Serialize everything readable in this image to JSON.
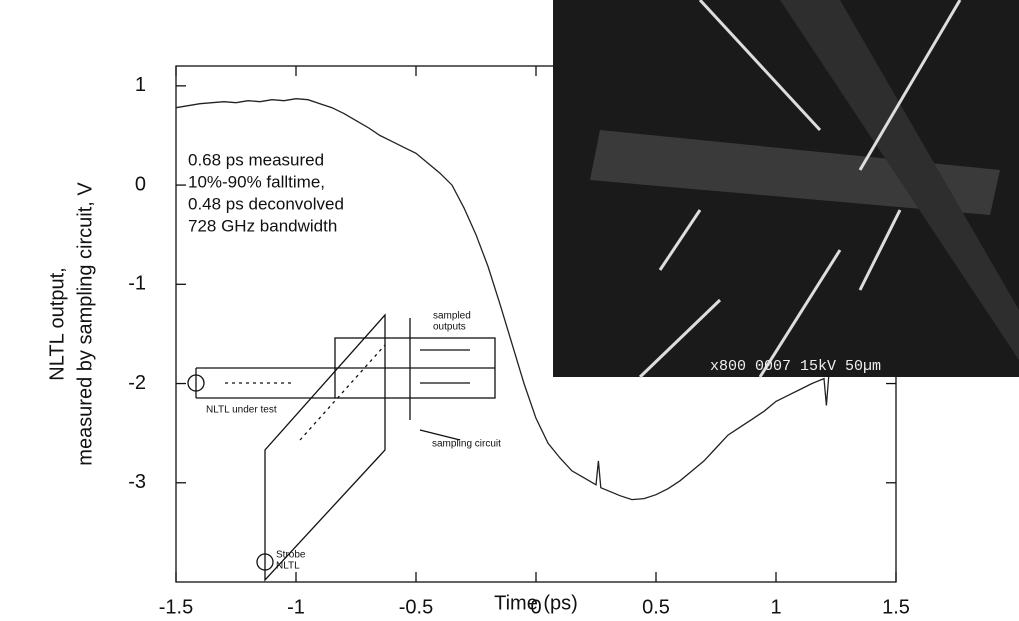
{
  "chart_data": {
    "type": "line",
    "xlabel": "Time (ps)",
    "ylabel": [
      "NLTL output,",
      "measured by sampling circuit, V"
    ],
    "color": "#222222",
    "xlim": [
      -1.5,
      1.5
    ],
    "xticks": [
      -1.5,
      -1,
      -0.5,
      0,
      0.5,
      1,
      1.5
    ],
    "ylim": [
      -4,
      1.2
    ],
    "yticks": [
      -3,
      -2,
      -1,
      0,
      1
    ],
    "x": [
      -1.5,
      -1.45,
      -1.4,
      -1.35,
      -1.3,
      -1.25,
      -1.2,
      -1.15,
      -1.1,
      -1.05,
      -1.0,
      -0.95,
      -0.9,
      -0.85,
      -0.8,
      -0.75,
      -0.7,
      -0.65,
      -0.6,
      -0.55,
      -0.5,
      -0.45,
      -0.4,
      -0.35,
      -0.3,
      -0.25,
      -0.2,
      -0.15,
      -0.1,
      -0.05,
      0,
      0.05,
      0.1,
      0.15,
      0.2,
      0.25,
      0.26,
      0.27,
      0.3,
      0.35,
      0.4,
      0.45,
      0.5,
      0.55,
      0.6,
      0.65,
      0.7,
      0.75,
      0.8,
      0.85,
      0.9,
      0.95,
      1.0,
      1.05,
      1.1,
      1.15,
      1.2,
      1.21,
      1.22,
      1.25,
      1.3
    ],
    "values": [
      0.78,
      0.8,
      0.82,
      0.83,
      0.84,
      0.83,
      0.85,
      0.84,
      0.86,
      0.85,
      0.87,
      0.86,
      0.82,
      0.78,
      0.72,
      0.65,
      0.58,
      0.5,
      0.44,
      0.38,
      0.32,
      0.22,
      0.12,
      0.0,
      -0.23,
      -0.5,
      -0.82,
      -1.2,
      -1.6,
      -2.0,
      -2.35,
      -2.6,
      -2.75,
      -2.88,
      -2.95,
      -3.02,
      -2.78,
      -3.05,
      -3.08,
      -3.13,
      -3.17,
      -3.16,
      -3.12,
      -3.06,
      -2.98,
      -2.88,
      -2.78,
      -2.65,
      -2.52,
      -2.44,
      -2.36,
      -2.28,
      -2.18,
      -2.12,
      -2.06,
      -2.0,
      -1.95,
      -2.22,
      -1.92,
      -1.85,
      -1.7
    ],
    "annotation": [
      "0.68 ps measured",
      "10%-90% falltime,",
      "0.48 ps deconvolved",
      "728 GHz bandwidth"
    ],
    "schematic_labels": {
      "outputs": [
        "sampled",
        "outputs"
      ],
      "under_test": "NLTL under test",
      "sampling": "sampling circuit",
      "strobe": [
        "Strobe",
        "NLTL"
      ]
    },
    "image_label": "x800 0007 15kV 50µm"
  }
}
